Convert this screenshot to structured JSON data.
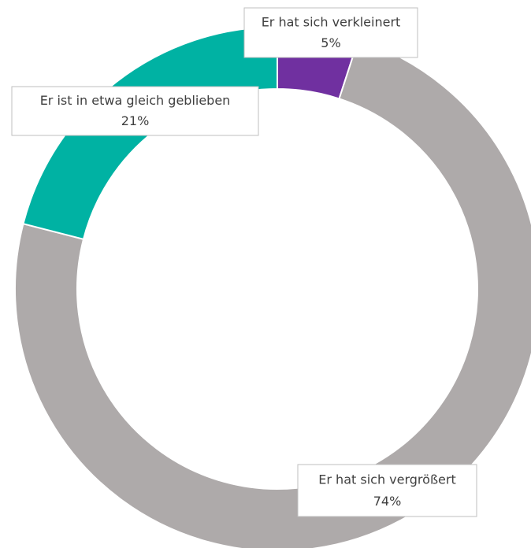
{
  "chart_data": {
    "type": "donut",
    "categories": [
      "Er hat sich verkleinert",
      "Er hat sich vergrößert",
      "Er ist in etwa gleich geblieben"
    ],
    "values": [
      5,
      74,
      21
    ],
    "value_labels": [
      "5%",
      "74%",
      "21%"
    ],
    "colors": [
      "#7030a0",
      "#aeaaaa",
      "#00b2a3"
    ]
  }
}
